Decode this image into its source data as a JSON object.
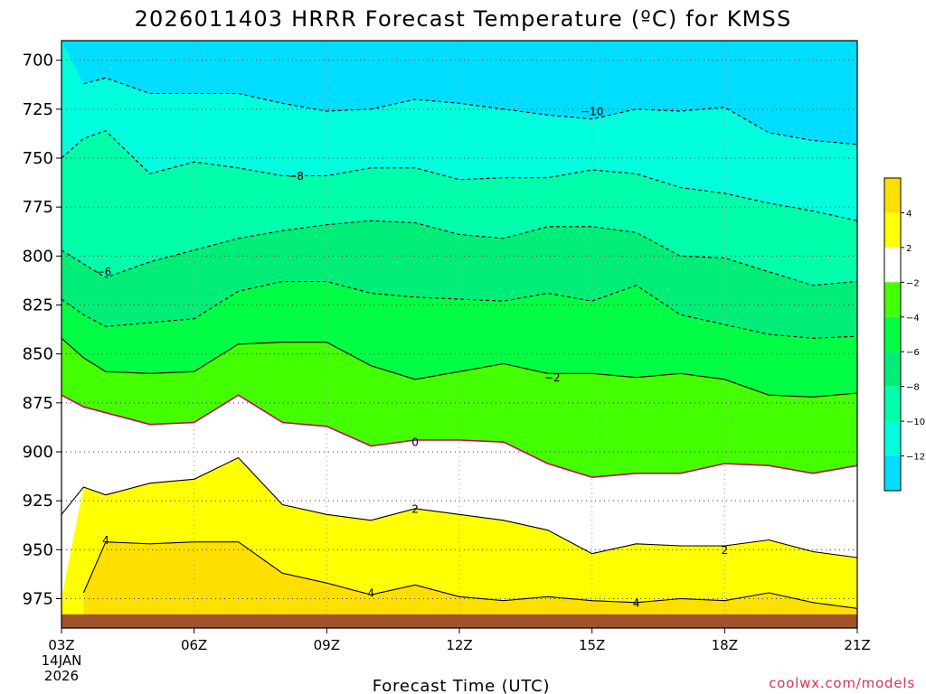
{
  "title": "2026011403 HRRR Forecast Temperature (ºC) for KMSS",
  "credit": "coolwx.com/models",
  "colors": {
    "ground": "#a0522d",
    "warm_band": "#ffdf00",
    "light_warm_band": "#ffff00",
    "neutral_band": "#ffffff",
    "cool_band_1": "#44ff00",
    "cool_band_2": "#00ff44",
    "cool_band_3": "#00ee77",
    "cool_band_4": "#00ffaa",
    "cool_band_5": "#00ffdd",
    "coldest_band": "#00ddff",
    "freezing_line": "#cc0066"
  },
  "chart_data": {
    "type": "contour",
    "title": "2026011403 HRRR Forecast Temperature (ºC) for KMSS",
    "xlabel": "Forecast Time (UTC)",
    "ylabel": "",
    "x_range_hours": [
      3,
      21
    ],
    "y_range_hpa": [
      990,
      690
    ],
    "y_inverted": true,
    "grid": "dotted",
    "x_ticks": [
      {
        "hour": 3,
        "label": "03Z",
        "sub": [
          "14JAN",
          "2026"
        ]
      },
      {
        "hour": 6,
        "label": "06Z"
      },
      {
        "hour": 9,
        "label": "09Z"
      },
      {
        "hour": 12,
        "label": "12Z"
      },
      {
        "hour": 15,
        "label": "15Z"
      },
      {
        "hour": 18,
        "label": "18Z"
      },
      {
        "hour": 21,
        "label": "21Z"
      }
    ],
    "y_ticks": [
      700,
      725,
      750,
      775,
      800,
      825,
      850,
      875,
      900,
      925,
      950,
      975
    ],
    "hours": [
      3,
      3.5,
      4,
      5,
      6,
      7,
      8,
      9,
      10,
      11,
      12,
      13,
      14,
      15,
      16,
      17,
      18,
      19,
      20,
      21
    ],
    "ground_hpa": 983,
    "contours": [
      {
        "level": -10,
        "label": "−10",
        "style": "dashed",
        "color": "#000000",
        "hpa": [
          690,
          690,
          690,
          690,
          690,
          690,
          690,
          690,
          690,
          690,
          690,
          690,
          690,
          690,
          690,
          690,
          690,
          690,
          690,
          690
        ],
        "hpa_actual": [
          null,
          712,
          709,
          717,
          717,
          717,
          722,
          726,
          725,
          720,
          722,
          725,
          728,
          730,
          725,
          726,
          724,
          737,
          741,
          743
        ],
        "label_at": {
          "hour": 15,
          "hpa": 726
        }
      },
      {
        "level": -8,
        "label": "−8",
        "style": "dashed",
        "color": "#000000",
        "hpa_actual": [
          750,
          740,
          736,
          758,
          752,
          755,
          759,
          759,
          755,
          755,
          761,
          760,
          760,
          756,
          758,
          765,
          768,
          773,
          777,
          782
        ],
        "label_at": {
          "hour": 8.3,
          "hpa": 759
        }
      },
      {
        "level": -6,
        "label": "−6",
        "style": "dashed",
        "color": "#000000",
        "hpa_actual": [
          797,
          804,
          811,
          803,
          797,
          791,
          787,
          784,
          782,
          783,
          789,
          791,
          785,
          785,
          788,
          800,
          801,
          808,
          815,
          813
        ],
        "label_at": {
          "hour": 3.95,
          "hpa": 808
        }
      },
      {
        "level": -4,
        "label": "−4",
        "style": "dashed",
        "color": "#000000",
        "hpa_actual": [
          822,
          830,
          836,
          834,
          832,
          818,
          813,
          813,
          819,
          821,
          822,
          823,
          819,
          823,
          815,
          830,
          835,
          840,
          842,
          841
        ],
        "label_at": null
      },
      {
        "level": -2,
        "label": "−2",
        "style": "solid",
        "color": "#000000",
        "hpa_actual": [
          842,
          852,
          859,
          860,
          859,
          845,
          844,
          844,
          856,
          863,
          859,
          855,
          860,
          860,
          862,
          860,
          863,
          871,
          872,
          870
        ],
        "label_at": {
          "hour": 14.1,
          "hpa": 862
        }
      },
      {
        "level": 0,
        "label": "0",
        "style": "solid",
        "color": "#cc0066",
        "hpa_actual": [
          871,
          877,
          880,
          886,
          885,
          871,
          885,
          887,
          897,
          894,
          894,
          895,
          906,
          913,
          911,
          911,
          906,
          907,
          911,
          907
        ],
        "label_at": {
          "hour": 11,
          "hpa": 895
        }
      },
      {
        "level": 2,
        "label": "2",
        "style": "solid",
        "color": "#000000",
        "hpa_actual": [
          932,
          918,
          922,
          916,
          914,
          903,
          927,
          932,
          935,
          929,
          932,
          935,
          940,
          952,
          947,
          948,
          948,
          945,
          951,
          954
        ],
        "label_at": {
          "hour": 11,
          "hpa": 929
        }
      },
      {
        "level": 4,
        "label": "4",
        "style": "solid",
        "color": "#000000",
        "hpa_actual": [
          null,
          972,
          946,
          947,
          946,
          946,
          962,
          967,
          973,
          968,
          974,
          976,
          974,
          976,
          977,
          975,
          976,
          972,
          977,
          980
        ],
        "label_at": {
          "hour": 10,
          "hpa": 972
        }
      }
    ],
    "extra_labels": [
      {
        "text": "4",
        "hour": 4,
        "hpa": 945
      },
      {
        "text": "4",
        "hour": 16,
        "hpa": 977
      },
      {
        "text": "2",
        "hour": 18,
        "hpa": 950
      }
    ],
    "legend": {
      "position": "right",
      "ticks": [
        "4",
        "2",
        "−2",
        "−4",
        "−6",
        "−8",
        "−10",
        "−12"
      ],
      "bands": [
        "#ffdf00",
        "#ffff00",
        "#ffffff",
        "#44ff00",
        "#00ff44",
        "#00ee77",
        "#00ffaa",
        "#00ffdd",
        "#00ddff"
      ]
    }
  }
}
